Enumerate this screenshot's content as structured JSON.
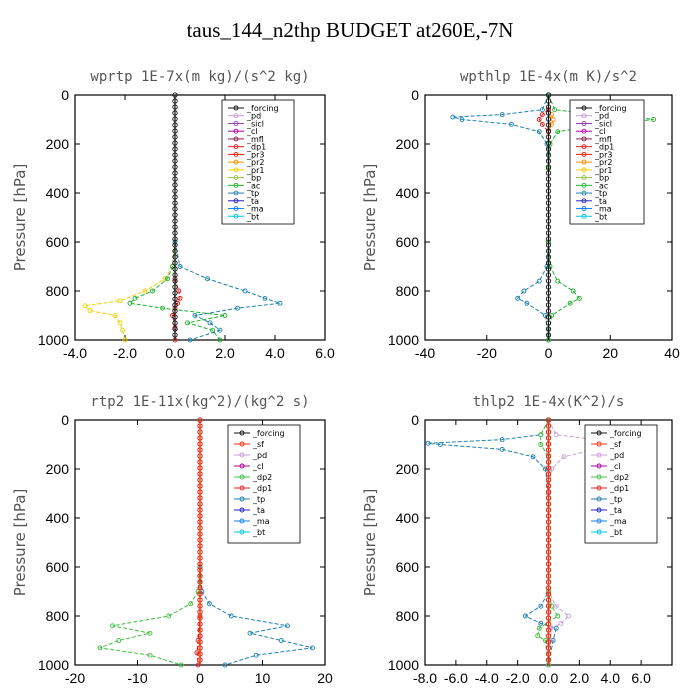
{
  "title": "taus_144_n2thp  BUDGET at260E,-7N",
  "colors": {
    "forcing": "#111111",
    "pd": "#c8a0d8",
    "sicl": "#9a3fb0",
    "cl": "#b000a0",
    "mfl": "#8a1a4a",
    "dp1": "#e02020",
    "pr3": "#ff2000",
    "pr2": "#ff9000",
    "pr1": "#f0d000",
    "bp": "#90c040",
    "ac": "#20b030",
    "tp": "#2080b0",
    "ta": "#2020c0",
    "ma": "#1080ff",
    "bt": "#00c8e0",
    "sf": "#ff3010",
    "dp2": "#40c040",
    "axis": "#000000"
  },
  "chart_data": [
    {
      "type": "line",
      "title": "wprtp   1E-7x(m kg)/(s^2 kg)",
      "ylabel": "Pressure [hPa]",
      "xlim": [
        -4,
        6
      ],
      "ylim": [
        1000,
        0
      ],
      "xticks": [
        -4,
        -2,
        0,
        2,
        4,
        6
      ],
      "xtick_labels": [
        "-4.0",
        "-2.0",
        "0.0",
        "2.0",
        "4.0",
        "6.0"
      ],
      "yticks": [
        0,
        200,
        400,
        600,
        800,
        1000
      ],
      "ytick_labels": [
        "0",
        "200",
        "400",
        "600",
        "800",
        "1000"
      ],
      "legend": [
        "_forcing",
        "_pd",
        "_sicl",
        "_cl",
        "_mfl",
        "_dp1",
        "_pr3",
        "_pr2",
        "_pr1",
        "_bp",
        "_ac",
        "_tp",
        "_ta",
        "_ma",
        "_bt"
      ],
      "series": [
        {
          "name": "_pr1",
          "color": "pr1",
          "p": [
            600,
            700,
            750,
            800,
            840,
            860,
            880,
            900,
            930,
            960,
            1000
          ],
          "x": [
            0,
            -0.1,
            -0.4,
            -1.2,
            -2.2,
            -3.6,
            -3.4,
            -2.4,
            -2.2,
            -2.1,
            -2.0
          ]
        },
        {
          "name": "_ac",
          "color": "ac",
          "p": [
            600,
            700,
            750,
            800,
            830,
            850,
            870,
            900,
            930,
            960,
            1000
          ],
          "x": [
            0,
            -0.1,
            -0.3,
            -0.9,
            -1.6,
            -1.8,
            -0.5,
            2.0,
            0.5,
            1.5,
            1.8
          ]
        },
        {
          "name": "_tp",
          "color": "tp",
          "p": [
            600,
            700,
            750,
            800,
            830,
            850,
            870,
            900,
            930,
            960,
            1000
          ],
          "x": [
            0,
            0.2,
            1.3,
            2.8,
            3.6,
            4.2,
            2.5,
            0.8,
            1.4,
            1.8,
            0.6
          ]
        },
        {
          "name": "_dp1",
          "color": "dp1",
          "p": [
            750,
            800,
            830,
            850,
            870,
            900,
            950,
            1000
          ],
          "x": [
            0,
            0.15,
            0.2,
            0.1,
            0,
            -0.1,
            0,
            0
          ]
        },
        {
          "name": "_forcing",
          "color": "forcing",
          "p": [
            0,
            100,
            200,
            300,
            400,
            500,
            600,
            700,
            800,
            900,
            1000
          ],
          "x": [
            0,
            0,
            0,
            0,
            0,
            0,
            0,
            0,
            0,
            0,
            0
          ]
        }
      ]
    },
    {
      "type": "line",
      "title": "wpthlp   1E-4x(m K)/s^2",
      "ylabel": "Pressure [hPa]",
      "xlim": [
        -40,
        40
      ],
      "ylim": [
        1000,
        0
      ],
      "xticks": [
        -40,
        -20,
        0,
        20,
        40
      ],
      "xtick_labels": [
        "-40",
        "-20",
        "0",
        "20",
        "40"
      ],
      "yticks": [
        0,
        200,
        400,
        600,
        800,
        1000
      ],
      "ytick_labels": [
        "0",
        "200",
        "400",
        "600",
        "800",
        "1000"
      ],
      "legend": [
        "_forcing",
        "_pd",
        "_sicl",
        "_cl",
        "_mfl",
        "_dp1",
        "_pr3",
        "_pr2",
        "_pr1",
        "_bp",
        "_ac",
        "_tp",
        "_ta",
        "_ma",
        "_bt"
      ],
      "series": [
        {
          "name": "_tp",
          "color": "tp",
          "p": [
            0,
            60,
            80,
            90,
            100,
            120,
            150,
            200,
            300,
            600,
            700,
            760,
            800,
            830,
            850,
            900,
            1000
          ],
          "x": [
            0,
            -2,
            -15,
            -31,
            -28,
            -12,
            -3,
            -0.5,
            0,
            0,
            -0.5,
            -3,
            -8,
            -10,
            -7,
            -1,
            0
          ]
        },
        {
          "name": "_ac",
          "color": "ac",
          "p": [
            0,
            60,
            80,
            90,
            100,
            120,
            150,
            200,
            300,
            600,
            700,
            760,
            800,
            830,
            850,
            900,
            1000
          ],
          "x": [
            0,
            2,
            15,
            28,
            34,
            18,
            3,
            0.5,
            0,
            0,
            0.5,
            3,
            8,
            10,
            7,
            1,
            0
          ]
        },
        {
          "name": "_pr2",
          "color": "pr2",
          "p": [
            60,
            80,
            100,
            120,
            150
          ],
          "x": [
            0,
            1,
            1.5,
            1,
            0
          ]
        },
        {
          "name": "_dp1",
          "color": "dp1",
          "p": [
            60,
            80,
            100,
            120,
            150
          ],
          "x": [
            0,
            -2,
            -3,
            -2,
            0
          ]
        },
        {
          "name": "_forcing",
          "color": "forcing",
          "p": [
            0,
            100,
            200,
            300,
            400,
            500,
            600,
            700,
            800,
            900,
            1000
          ],
          "x": [
            0,
            0,
            0,
            0,
            0,
            0,
            0,
            0,
            0,
            0,
            0
          ]
        }
      ]
    },
    {
      "type": "line",
      "title": "rtp2   1E-11x(kg^2)/(kg^2 s)",
      "ylabel": "Pressure [hPa]",
      "xlim": [
        -20,
        20
      ],
      "ylim": [
        1000,
        0
      ],
      "xticks": [
        -20,
        -10,
        0,
        10,
        20
      ],
      "xtick_labels": [
        "-20",
        "-10",
        "0",
        "10",
        "20"
      ],
      "yticks": [
        0,
        200,
        400,
        600,
        800,
        1000
      ],
      "ytick_labels": [
        "0",
        "200",
        "400",
        "600",
        "800",
        "1000"
      ],
      "legend": [
        "_forcing",
        "_sf",
        "_pd",
        "_cl",
        "_dp2",
        "_dp1",
        "_tp",
        "_ta",
        "_ma",
        "_bt"
      ],
      "series": [
        {
          "name": "_dp2",
          "color": "dp2",
          "p": [
            600,
            700,
            750,
            800,
            840,
            870,
            900,
            930,
            960,
            1000
          ],
          "x": [
            0,
            -0.3,
            -1.5,
            -5,
            -14,
            -8,
            -13,
            -16,
            -8,
            -3
          ]
        },
        {
          "name": "_tp",
          "color": "tp",
          "p": [
            600,
            700,
            750,
            800,
            840,
            870,
            900,
            930,
            960,
            1000
          ],
          "x": [
            0,
            0.3,
            1.5,
            5,
            14,
            8,
            13,
            18,
            9,
            4
          ]
        },
        {
          "name": "_dp1",
          "color": "dp1",
          "p": [
            800,
            900,
            950,
            1000
          ],
          "x": [
            0,
            -0.3,
            -0.5,
            -0.3
          ]
        },
        {
          "name": "_forcing",
          "color": "forcing",
          "p": [
            0,
            100,
            200,
            300,
            400,
            500,
            600,
            700,
            800,
            900,
            1000
          ],
          "x": [
            0,
            0,
            0,
            0,
            0,
            0,
            0,
            0,
            0,
            0,
            0
          ]
        },
        {
          "name": "_sf",
          "color": "sf",
          "p": [
            0,
            100,
            200,
            300,
            400,
            500,
            600,
            700,
            800,
            900,
            1000
          ],
          "x": [
            0,
            0,
            0,
            0,
            0,
            0,
            0,
            0,
            0,
            0,
            0
          ]
        }
      ]
    },
    {
      "type": "line",
      "title": "thlp2   1E-4x(K^2)/s",
      "ylabel": "Pressure [hPa]",
      "xlim": [
        -8,
        8
      ],
      "ylim": [
        1000,
        0
      ],
      "xticks": [
        -8,
        -6,
        -4,
        -2,
        0,
        2,
        4,
        6
      ],
      "xtick_labels": [
        "-8.0",
        "-6.0",
        "-4.0",
        "-2.0",
        "0.0",
        "2.0",
        "4.0",
        "6.0"
      ],
      "yticks": [
        0,
        200,
        400,
        600,
        800,
        1000
      ],
      "ytick_labels": [
        "0",
        "200",
        "400",
        "600",
        "800",
        "1000"
      ],
      "legend": [
        "_forcing",
        "_sf",
        "_pd",
        "_cl",
        "_dp2",
        "_dp1",
        "_tp",
        "_ta",
        "_ma",
        "_bt"
      ],
      "series": [
        {
          "name": "_tp",
          "color": "tp",
          "p": [
            0,
            60,
            80,
            95,
            100,
            120,
            150,
            200,
            300,
            700,
            760,
            800,
            830,
            850,
            900,
            1000
          ],
          "x": [
            0,
            -0.5,
            -3,
            -7.8,
            -7,
            -3,
            -1,
            -0.2,
            0,
            0,
            -0.5,
            -1.5,
            -0.5,
            0.5,
            0.3,
            0
          ]
        },
        {
          "name": "_pd",
          "color": "pd",
          "p": [
            0,
            60,
            80,
            95,
            100,
            120,
            150,
            200,
            300,
            700,
            760,
            800,
            830,
            850,
            900,
            1000
          ],
          "x": [
            0,
            0.5,
            3,
            5,
            5,
            3,
            1,
            0.2,
            0,
            0,
            0.5,
            1.3,
            0.8,
            0.2,
            0.1,
            0
          ]
        },
        {
          "name": "_dp2",
          "color": "dp2",
          "p": [
            0,
            60,
            100,
            150,
            700,
            760,
            800,
            850,
            880,
            900,
            1000
          ],
          "x": [
            0,
            -0.5,
            -0.5,
            0,
            0,
            0.2,
            0.6,
            -0.6,
            -0.7,
            -0.2,
            0
          ]
        },
        {
          "name": "_forcing",
          "color": "forcing",
          "p": [
            0,
            100,
            200,
            300,
            400,
            500,
            600,
            700,
            800,
            900,
            1000
          ],
          "x": [
            0,
            0,
            0,
            0,
            0,
            0,
            0,
            0,
            0,
            0,
            0
          ]
        },
        {
          "name": "_sf",
          "color": "sf",
          "p": [
            0,
            100,
            200,
            300,
            400,
            500,
            600,
            700,
            800,
            900,
            1000
          ],
          "x": [
            0,
            0,
            0,
            0,
            0,
            0,
            0,
            0,
            0,
            0,
            0
          ]
        }
      ]
    }
  ]
}
